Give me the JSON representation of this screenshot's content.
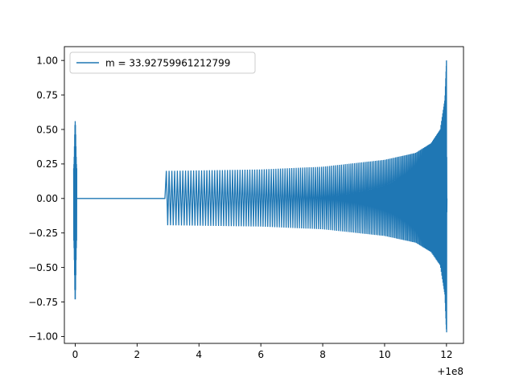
{
  "chart_data": {
    "type": "line",
    "title": "",
    "xlabel": "",
    "ylabel": "",
    "x_offset_label": "+1e8",
    "xlim": [
      -0.35,
      12.55
    ],
    "ylim": [
      -1.05,
      1.1
    ],
    "xticks": [
      0,
      2,
      4,
      6,
      8,
      10,
      12
    ],
    "xtick_labels": [
      "0",
      "2",
      "4",
      "6",
      "8",
      "10",
      "12"
    ],
    "yticks": [
      -1.0,
      -0.75,
      -0.5,
      -0.25,
      0.0,
      0.25,
      0.5,
      0.75,
      1.0
    ],
    "ytick_labels": [
      "−1.00",
      "−0.75",
      "−0.50",
      "−0.25",
      "0.00",
      "0.25",
      "0.50",
      "0.75",
      "1.00"
    ],
    "grid": false,
    "legend_position": "top-left",
    "series": [
      {
        "name": "m = 33.92759961212799",
        "color": "#1f77b4",
        "segments": [
          {
            "kind": "burst",
            "x_start": -0.05,
            "x_end": 0.05,
            "y_max": 0.56,
            "y_min": -0.74
          },
          {
            "kind": "flat",
            "x_start": 0.05,
            "x_end": 2.9,
            "y": 0.0
          },
          {
            "kind": "chirp",
            "x_start": 2.9,
            "x_end": 12.0,
            "amp_start": 0.2,
            "amp_end": 1.0,
            "y_max_peak": 1.0,
            "y_min_peak": -0.97,
            "amp_at_x": [
              [
                3,
                0.2
              ],
              [
                6,
                0.21
              ],
              [
                8,
                0.23
              ],
              [
                10,
                0.28
              ],
              [
                11,
                0.33
              ],
              [
                11.5,
                0.4
              ],
              [
                11.8,
                0.5
              ],
              [
                11.95,
                0.72
              ],
              [
                12.0,
                1.0
              ]
            ]
          }
        ]
      }
    ]
  }
}
